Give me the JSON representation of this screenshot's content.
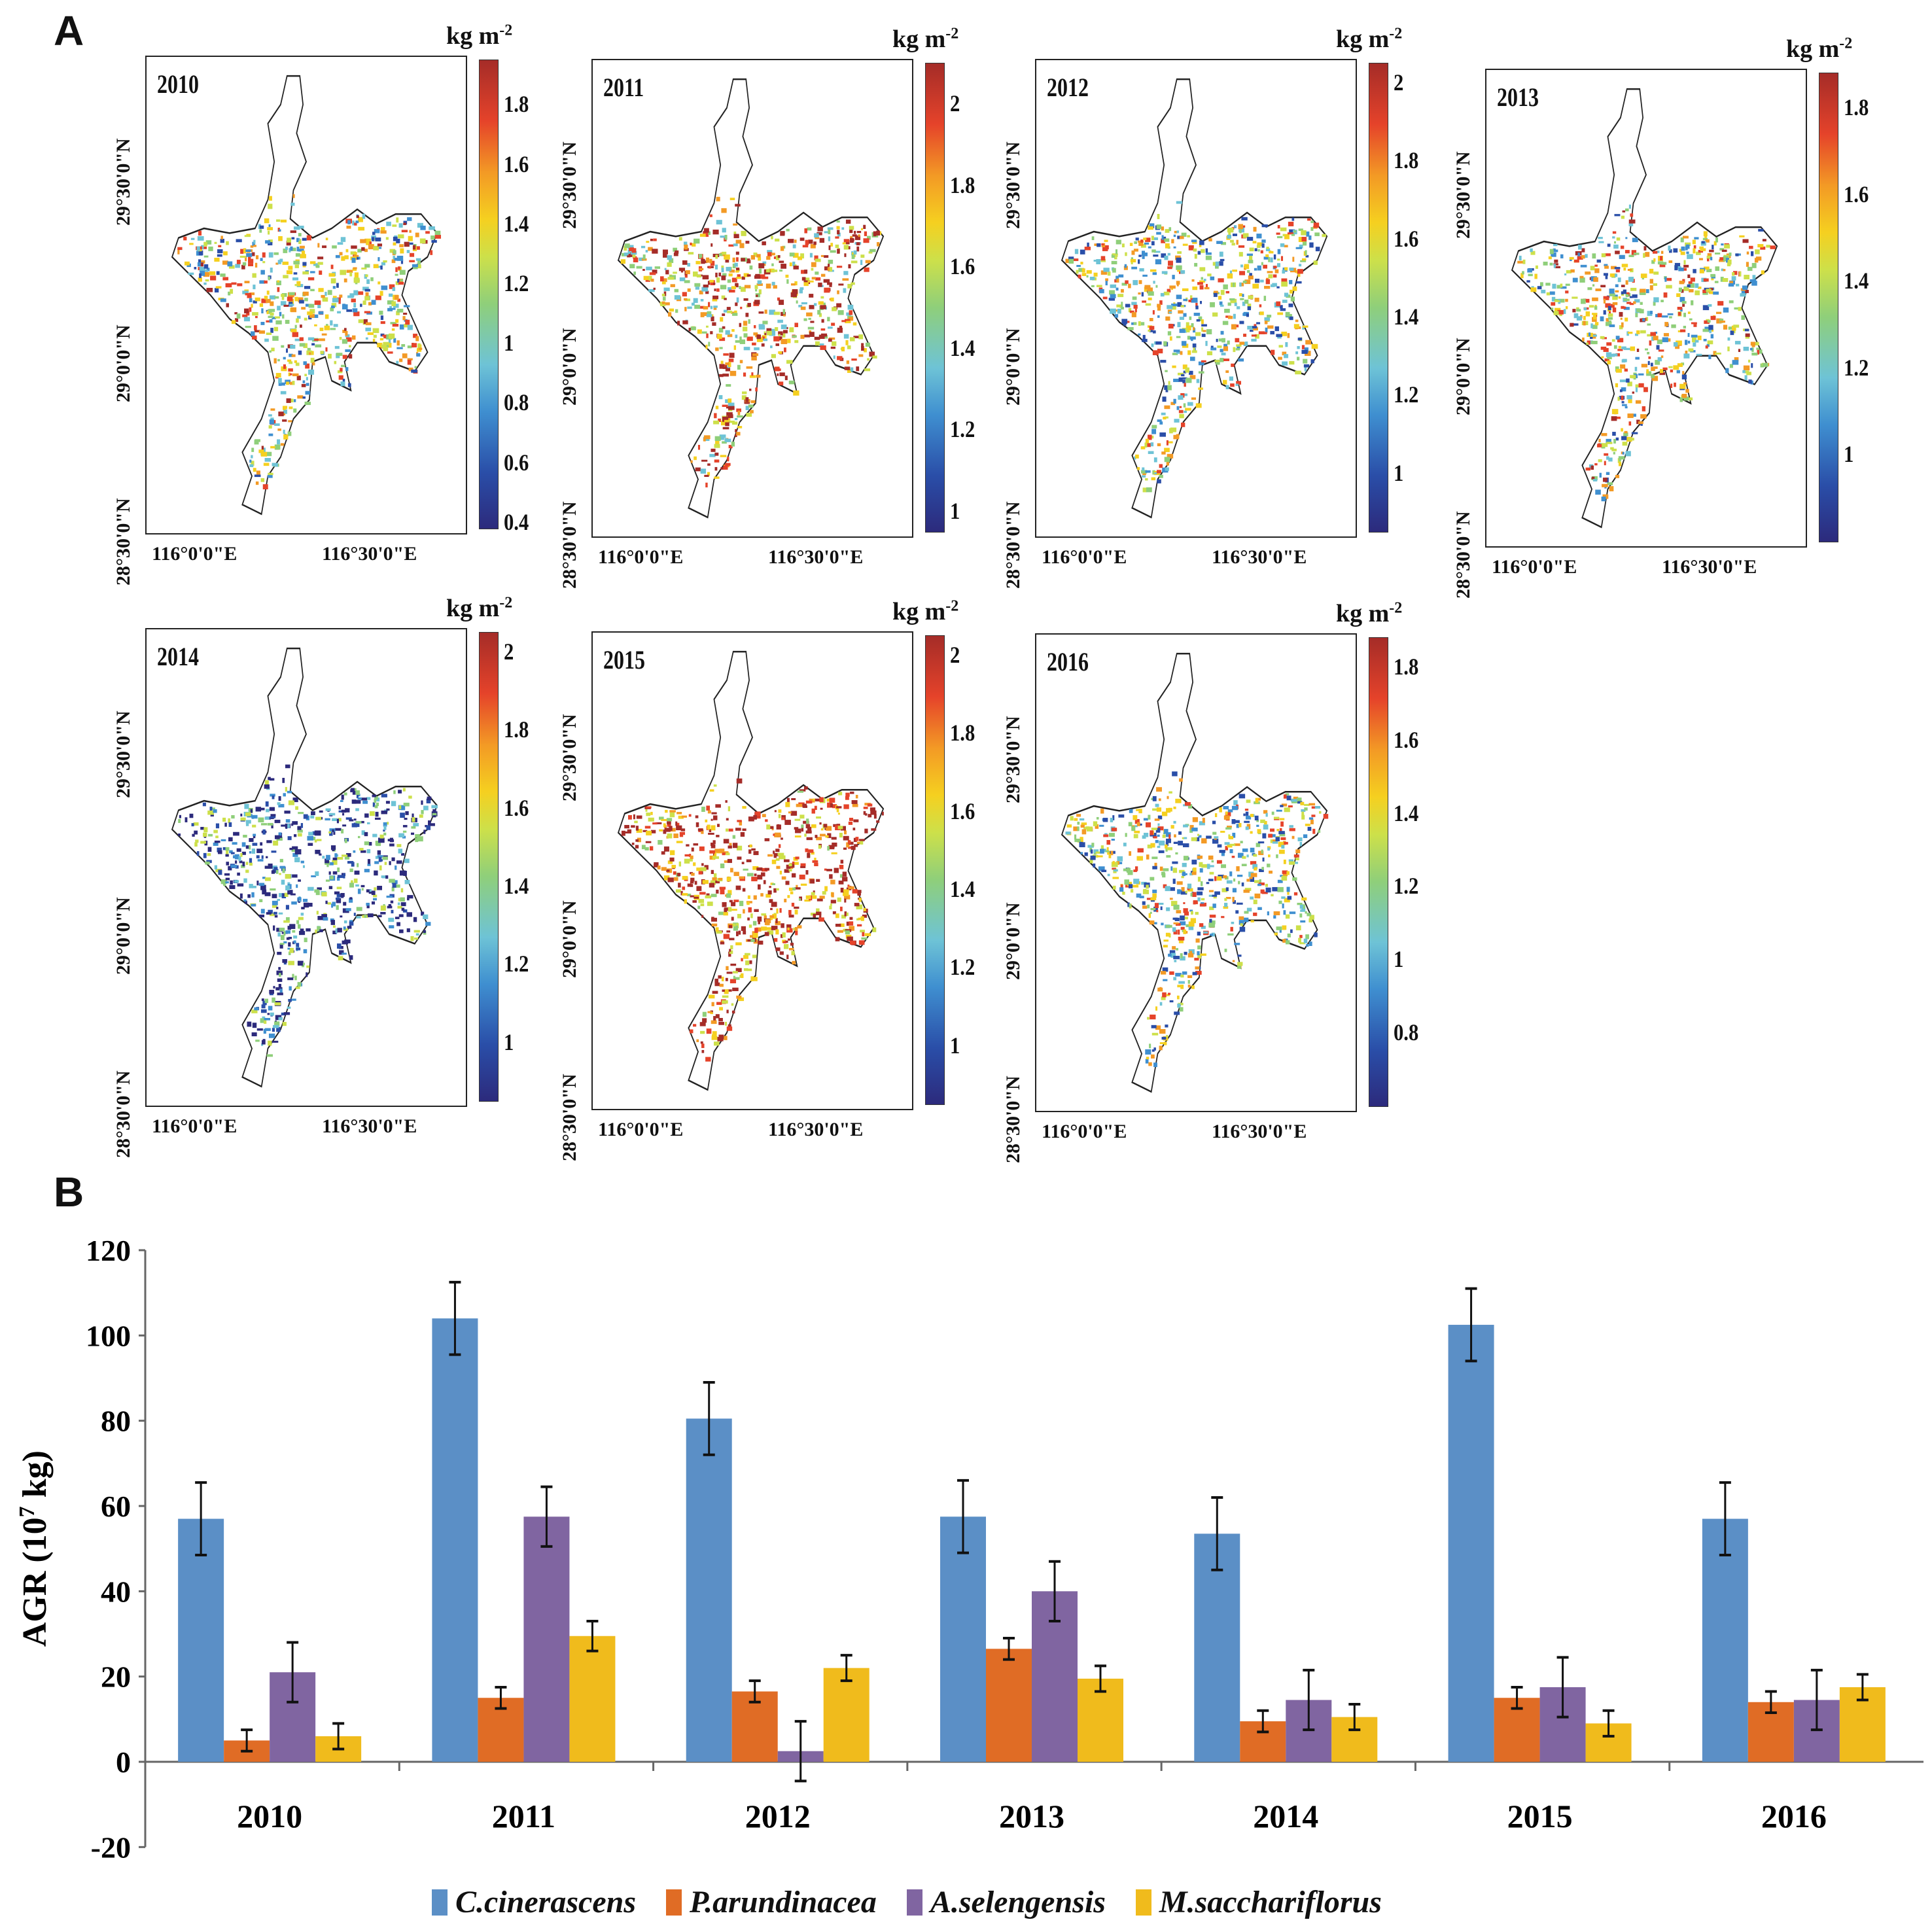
{
  "panel_labels": {
    "a": "A",
    "b": "B"
  },
  "maps": {
    "unit": "kg m",
    "unit_exp": "-2",
    "lat_labels": [
      "29°30'0\"N",
      "29°0'0\"N",
      "28°30'0\"N"
    ],
    "lon_labels": [
      "116°0'0\"E",
      "116°30'0\"E"
    ],
    "panels": [
      {
        "year": "2010",
        "range": [
          0.38,
          1.95
        ],
        "ticks": [
          "0.4",
          "0.6",
          "0.8",
          "1",
          "1.2",
          "1.4",
          "1.6",
          "1.8"
        ],
        "bias": 0.55
      },
      {
        "year": "2011",
        "range": [
          0.95,
          2.1
        ],
        "ticks": [
          "1",
          "1.2",
          "1.4",
          "1.6",
          "1.8",
          "2"
        ],
        "bias": 0.7
      },
      {
        "year": "2012",
        "range": [
          0.85,
          2.05
        ],
        "ticks": [
          "1",
          "1.2",
          "1.4",
          "1.6",
          "1.8",
          "2"
        ],
        "bias": 0.5
      },
      {
        "year": "2013",
        "range": [
          0.8,
          1.88
        ],
        "ticks": [
          "1",
          "1.2",
          "1.4",
          "1.6",
          "1.8"
        ],
        "bias": 0.55
      },
      {
        "year": "2014",
        "range": [
          0.85,
          2.05
        ],
        "ticks": [
          "1",
          "1.2",
          "1.4",
          "1.6",
          "1.8",
          "2"
        ],
        "bias": 0.2
      },
      {
        "year": "2015",
        "range": [
          0.85,
          2.05
        ],
        "ticks": [
          "1",
          "1.2",
          "1.4",
          "1.6",
          "1.8",
          "2"
        ],
        "bias": 0.85
      },
      {
        "year": "2016",
        "range": [
          0.6,
          1.88
        ],
        "ticks": [
          "0.8",
          "1",
          "1.2",
          "1.4",
          "1.6",
          "1.8"
        ],
        "bias": 0.5
      }
    ]
  },
  "chart_data": {
    "type": "bar",
    "title": "",
    "xlabel": "",
    "ylabel": "AGR (10",
    "ylabel_exp": "7",
    "ylabel_tail": " kg)",
    "ylim": [
      -20,
      120
    ],
    "yticks": [
      "-20",
      "0",
      "20",
      "40",
      "60",
      "80",
      "100",
      "120"
    ],
    "categories": [
      "2010",
      "2011",
      "2012",
      "2013",
      "2014",
      "2015",
      "2016"
    ],
    "legend_position": "bottom",
    "series": [
      {
        "name": "C.cinerascens",
        "color": "#5b8fc6",
        "values": [
          57,
          104,
          80.5,
          57.5,
          53.5,
          102.5,
          57
        ],
        "errors": [
          8.5,
          8.5,
          8.5,
          8.5,
          8.5,
          8.5,
          8.5
        ]
      },
      {
        "name": "P.arundinacea",
        "color": "#e06c25",
        "values": [
          5,
          15,
          16.5,
          26.5,
          9.5,
          15,
          14
        ],
        "errors": [
          2.5,
          2.5,
          2.5,
          2.5,
          2.5,
          2.5,
          2.5
        ]
      },
      {
        "name": "A.selengensis",
        "color": "#8065a1",
        "values": [
          21,
          57.5,
          2.5,
          40,
          14.5,
          17.5,
          14.5
        ],
        "errors": [
          7,
          7,
          7,
          7,
          7,
          7,
          7
        ]
      },
      {
        "name": "M.sacchariflorus",
        "color": "#f0bb1c",
        "values": [
          6,
          29.5,
          22,
          19.5,
          10.5,
          9,
          17.5
        ],
        "errors": [
          3,
          3.5,
          3,
          3,
          3,
          3,
          3
        ]
      }
    ]
  }
}
